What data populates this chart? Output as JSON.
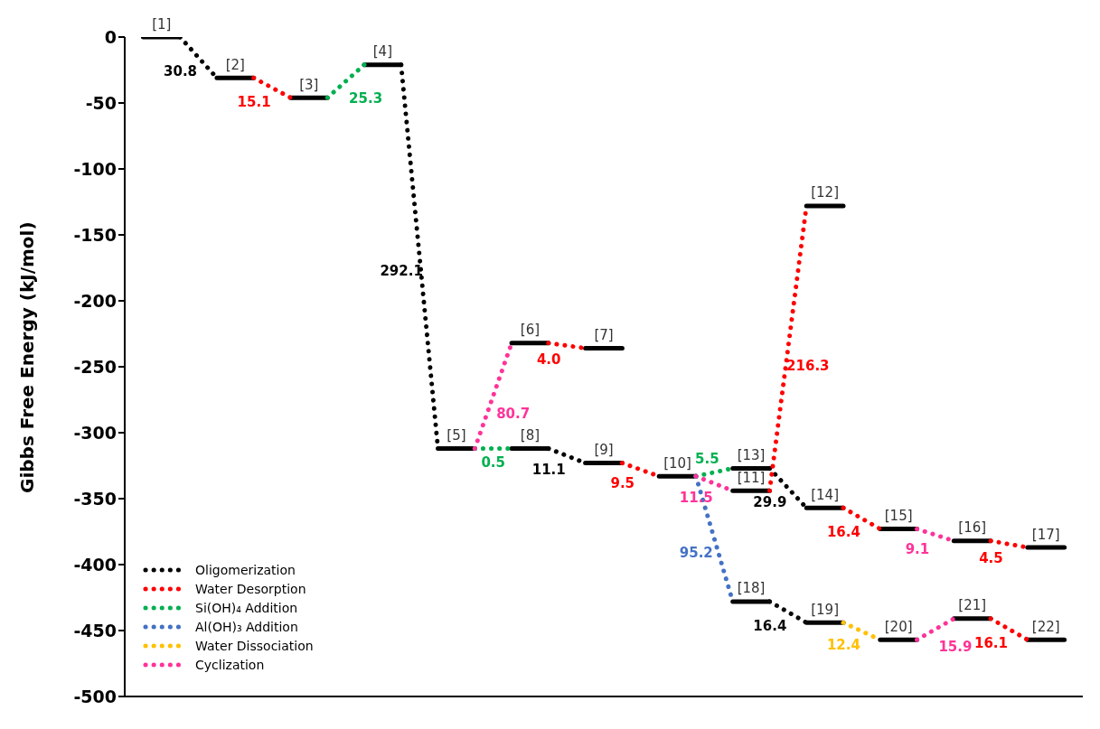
{
  "chart_data": {
    "type": "line",
    "ylabel": "Gibbs Free Energy  (kJ/mol)",
    "ylim": [
      -500,
      0
    ],
    "yticks": [
      -500,
      -450,
      -400,
      -350,
      -300,
      -250,
      -200,
      -150,
      -100,
      -50,
      0
    ],
    "categories": [
      null,
      null,
      null,
      null,
      null,
      null,
      null,
      null,
      null,
      null,
      null,
      null,
      null,
      null,
      null,
      null,
      null,
      null,
      null,
      null,
      null,
      null,
      null,
      null,
      null,
      null
    ],
    "tick_labels": "y",
    "grid": false,
    "marker": "none",
    "legend": "bottom left",
    "series": [
      {
        "color": "#010101",
        "line_style": "solid",
        "values": [
          0,
          0,
          null,
          null,
          -46,
          -46,
          null,
          null,
          -312,
          -312,
          null,
          null,
          -236,
          -236,
          null,
          null,
          -344,
          -344,
          null,
          null,
          -373,
          -373,
          null,
          null,
          -387,
          -387
        ]
      },
      {
        "color": "#020202",
        "line_style": "solid",
        "values": [
          null,
          null,
          -31,
          -31,
          null,
          null,
          -21,
          -21,
          null,
          null,
          -232,
          -232,
          null,
          null,
          -333,
          -333,
          null,
          null,
          -128,
          -128,
          null,
          null,
          -382,
          -382,
          null,
          null
        ]
      },
      {
        "color": "#030303",
        "line_style": "solid",
        "values": [
          null,
          null,
          null,
          null,
          null,
          null,
          null,
          null,
          null,
          null,
          null,
          null,
          -323,
          -323,
          null,
          null,
          -327,
          -327,
          null,
          null,
          -457,
          -457,
          null,
          null,
          -457,
          -457
        ]
      },
      {
        "color": "#040404",
        "line_style": "solid",
        "values": [
          null,
          null,
          null,
          null,
          null,
          null,
          null,
          null,
          null,
          null,
          -312,
          -312,
          null,
          null,
          null,
          null,
          null,
          null,
          -357,
          -357,
          null,
          null,
          -441,
          -441,
          null,
          null
        ]
      },
      {
        "color": "#050505",
        "line_style": "solid",
        "values": [
          null,
          null,
          null,
          null,
          null,
          null,
          null,
          null,
          null,
          null,
          null,
          null,
          null,
          null,
          null,
          null,
          -428,
          -428,
          null,
          null,
          null,
          null,
          null,
          null,
          null,
          null
        ]
      },
      {
        "color": "#060606",
        "line_style": "solid",
        "values": [
          null,
          null,
          null,
          null,
          null,
          null,
          null,
          null,
          null,
          null,
          null,
          null,
          null,
          null,
          null,
          null,
          null,
          null,
          -444,
          -444,
          null,
          null,
          null,
          null,
          null,
          null
        ]
      },
      {
        "name": "Oligomerization",
        "color": "#000000",
        "line_style": "dotted",
        "values": [
          null,
          0,
          -31,
          null,
          null,
          null,
          null,
          -21,
          -312,
          null,
          null,
          -312,
          -323,
          null,
          null,
          null,
          null,
          -327,
          -357,
          null,
          null,
          null,
          null,
          null,
          null,
          null
        ]
      },
      {
        "name": "Water Desorption",
        "color": "#ff0000",
        "line_style": "dotted",
        "values": [
          null,
          null,
          null,
          -31,
          -46,
          null,
          null,
          null,
          null,
          null,
          null,
          -232,
          -236,
          null,
          null,
          null,
          null,
          -344,
          -128,
          null,
          null,
          null,
          null,
          -382,
          -387,
          null
        ]
      },
      {
        "name": "Si(OH)₄ Addition",
        "color": "#00b050",
        "line_style": "dotted",
        "values": [
          null,
          null,
          null,
          null,
          null,
          -46,
          -21,
          null,
          null,
          -312,
          -312,
          null,
          null,
          null,
          null,
          -333,
          -327,
          null,
          null,
          null,
          null,
          null,
          null,
          null,
          null,
          null
        ]
      },
      {
        "name": "Al(OH)₃ Addition",
        "color": "#4472c4",
        "line_style": "dotted",
        "values": [
          null,
          null,
          null,
          null,
          null,
          null,
          null,
          null,
          null,
          null,
          null,
          null,
          null,
          null,
          null,
          -333,
          -428,
          null,
          null,
          null,
          null,
          null,
          null,
          null,
          null,
          null
        ]
      },
      {
        "name": "Water Dissociation",
        "color": "#ffc000",
        "line_style": "dotted",
        "values": [
          null,
          null,
          null,
          null,
          null,
          null,
          null,
          null,
          null,
          null,
          null,
          null,
          null,
          null,
          null,
          null,
          null,
          null,
          null,
          -444,
          -457,
          null,
          null,
          null,
          null,
          null
        ]
      },
      {
        "name": "Cyclization",
        "color": "#ff3399",
        "line_style": "dotted",
        "values": [
          null,
          null,
          null,
          null,
          null,
          null,
          null,
          null,
          null,
          -312,
          -232,
          null,
          null,
          null,
          null,
          -333,
          -344,
          null,
          null,
          null,
          null,
          -373,
          -382,
          null,
          null,
          null
        ]
      },
      {
        "color": "#0b0b0b",
        "line_style": "dotted",
        "values": [
          null,
          null,
          null,
          null,
          null,
          null,
          null,
          null,
          null,
          null,
          null,
          null,
          null,
          null,
          null,
          null,
          null,
          -428,
          -444,
          null,
          null,
          null,
          null,
          null,
          null,
          null
        ]
      },
      {
        "color": "#fe0000",
        "line_style": "dotted",
        "values": [
          null,
          null,
          null,
          null,
          null,
          null,
          null,
          null,
          null,
          null,
          null,
          null,
          null,
          -323,
          -333,
          null,
          null,
          null,
          null,
          -357,
          -373,
          null,
          null,
          -441,
          -457,
          null
        ]
      },
      {
        "color": "#fe3399",
        "line_style": "dotted",
        "values": [
          null,
          null,
          null,
          null,
          null,
          null,
          null,
          null,
          null,
          null,
          null,
          null,
          null,
          null,
          null,
          null,
          null,
          null,
          null,
          null,
          null,
          -457,
          -441,
          null,
          null,
          null
        ]
      }
    ],
    "annotations": [
      "[1]",
      "[3]",
      "[5]",
      "[7]",
      "[11]",
      "[15]",
      "[17]",
      "[2]",
      "[4]",
      "[6]",
      "[10]",
      "[12]",
      "[16]",
      "[9]",
      "[13]",
      "[20]",
      "[22]",
      "[8]",
      "[14]",
      "[21]",
      "[18]",
      "[19]",
      "30.8",
      "292.1",
      "11.1",
      "29.9",
      "15.1",
      "4.0",
      "216.3",
      "4.5",
      "25.3",
      "0.5",
      "5.5",
      "95.2",
      "12.4",
      "80.7",
      "11.5",
      "9.1",
      "16.4",
      "9.5",
      "16.4",
      "16.1",
      "15.9"
    ]
  }
}
